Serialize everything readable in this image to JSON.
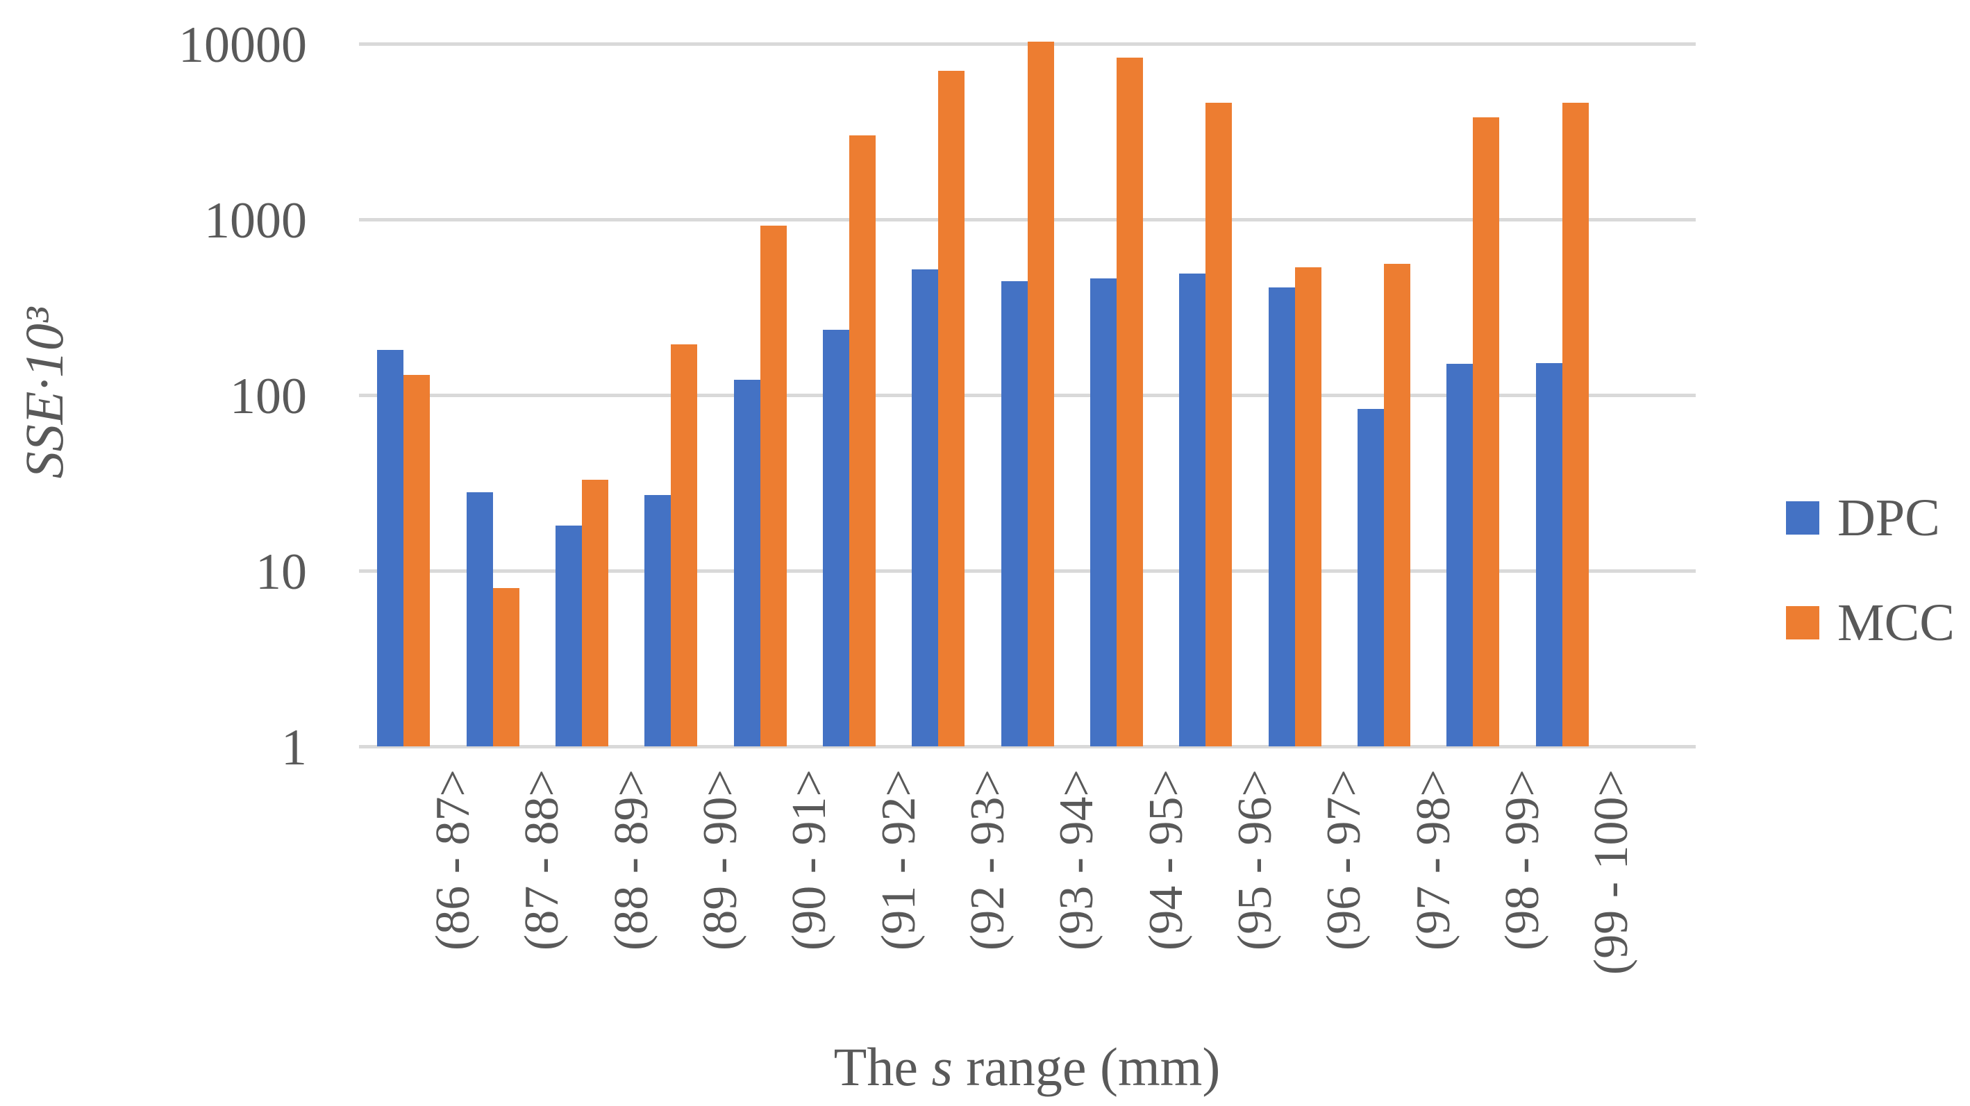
{
  "chart_data": {
    "type": "bar",
    "title": "",
    "ylabel": "SSE·10³",
    "xlabel_pre": "The ",
    "xlabel_italic": "s",
    "xlabel_post": " range (mm)",
    "y_scale": "log",
    "ylim": [
      1,
      10000
    ],
    "y_ticks": [
      "1",
      "10",
      "100",
      "1000",
      "10000"
    ],
    "grid": "horizontal",
    "legend_position": "right",
    "categories": [
      "(86 - 87>",
      "(87 - 88>",
      "(88 - 89>",
      "(89 - 90>",
      "(90 - 91>",
      "(91 - 92>",
      "(92 - 93>",
      "(93 - 94>",
      "(94 - 95>",
      "(95 - 96>",
      "(96 - 97>",
      "(97 - 98>",
      "(98 - 99>",
      "(99 - 100>"
    ],
    "series": [
      {
        "name": "DPC",
        "color": "#4472C4",
        "values": [
          180,
          28,
          18,
          27,
          122,
          235,
          520,
          445,
          460,
          490,
          410,
          83,
          150,
          152
        ]
      },
      {
        "name": "MCC",
        "color": "#ED7D31",
        "values": [
          130,
          8,
          33,
          195,
          920,
          3000,
          7000,
          10300,
          8300,
          4600,
          535,
          560,
          3800,
          4600
        ]
      }
    ]
  },
  "styles": {
    "text_color": "#595959",
    "gridline_color": "#D9D9D9",
    "background": "#FFFFFF"
  }
}
